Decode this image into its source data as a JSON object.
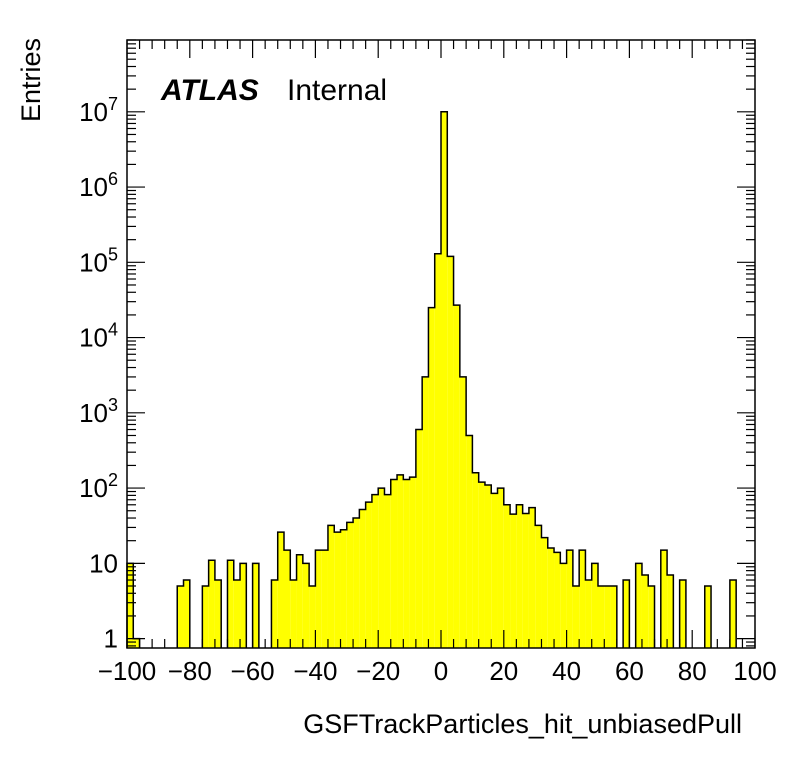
{
  "chart_data": {
    "type": "bar",
    "style": "histogram",
    "xlabel": "GSFTrackParticles_hit_unbiasedPull",
    "ylabel": "Entries",
    "xlim": [
      -100,
      100
    ],
    "ylim": [
      0.75,
      90000000
    ],
    "yscale": "log",
    "bin_width": 2,
    "x_ticks": [
      "−100",
      "−80",
      "−60",
      "−40",
      "−20",
      "0",
      "20",
      "40",
      "60",
      "80",
      "100"
    ],
    "y_ticks": [
      {
        "value": 1,
        "base": "1",
        "exp": ""
      },
      {
        "value": 10,
        "base": "10",
        "exp": ""
      },
      {
        "value": 100,
        "base": "10",
        "exp": "2"
      },
      {
        "value": 1000,
        "base": "10",
        "exp": "3"
      },
      {
        "value": 10000,
        "base": "10",
        "exp": "4"
      },
      {
        "value": 100000,
        "base": "10",
        "exp": "5"
      },
      {
        "value": 1000000,
        "base": "10",
        "exp": "6"
      },
      {
        "value": 10000000,
        "base": "10",
        "exp": "7"
      }
    ],
    "annotation": {
      "bold": "ATLAS",
      "text": "Internal"
    },
    "fill_color": "#ffff00",
    "line_color": "#000000",
    "bins": [
      {
        "lo": -100,
        "hi": -98,
        "v": 10
      },
      {
        "lo": -98,
        "hi": -96,
        "v": 1
      },
      {
        "lo": -84,
        "hi": -82,
        "v": 5
      },
      {
        "lo": -82,
        "hi": -80,
        "v": 6
      },
      {
        "lo": -76,
        "hi": -74,
        "v": 5
      },
      {
        "lo": -74,
        "hi": -72,
        "v": 11
      },
      {
        "lo": -72,
        "hi": -70,
        "v": 6
      },
      {
        "lo": -68,
        "hi": -66,
        "v": 11
      },
      {
        "lo": -66,
        "hi": -64,
        "v": 6
      },
      {
        "lo": -64,
        "hi": -62,
        "v": 10
      },
      {
        "lo": -60,
        "hi": -58,
        "v": 10
      },
      {
        "lo": -54,
        "hi": -52,
        "v": 6
      },
      {
        "lo": -52,
        "hi": -50,
        "v": 26
      },
      {
        "lo": -50,
        "hi": -48,
        "v": 15
      },
      {
        "lo": -48,
        "hi": -46,
        "v": 6
      },
      {
        "lo": -46,
        "hi": -44,
        "v": 13
      },
      {
        "lo": -44,
        "hi": -42,
        "v": 10
      },
      {
        "lo": -42,
        "hi": -40,
        "v": 5
      },
      {
        "lo": -40,
        "hi": -38,
        "v": 15
      },
      {
        "lo": -38,
        "hi": -36,
        "v": 15
      },
      {
        "lo": -36,
        "hi": -34,
        "v": 32
      },
      {
        "lo": -34,
        "hi": -32,
        "v": 26
      },
      {
        "lo": -32,
        "hi": -30,
        "v": 28
      },
      {
        "lo": -30,
        "hi": -28,
        "v": 35
      },
      {
        "lo": -28,
        "hi": -26,
        "v": 40
      },
      {
        "lo": -26,
        "hi": -24,
        "v": 52
      },
      {
        "lo": -24,
        "hi": -22,
        "v": 65
      },
      {
        "lo": -22,
        "hi": -20,
        "v": 82
      },
      {
        "lo": -20,
        "hi": -18,
        "v": 100
      },
      {
        "lo": -18,
        "hi": -16,
        "v": 82
      },
      {
        "lo": -16,
        "hi": -14,
        "v": 130
      },
      {
        "lo": -14,
        "hi": -12,
        "v": 150
      },
      {
        "lo": -12,
        "hi": -10,
        "v": 130
      },
      {
        "lo": -10,
        "hi": -8,
        "v": 140
      },
      {
        "lo": -8,
        "hi": -6,
        "v": 600
      },
      {
        "lo": -6,
        "hi": -4,
        "v": 3000
      },
      {
        "lo": -4,
        "hi": -2,
        "v": 25000
      },
      {
        "lo": -2,
        "hi": 0,
        "v": 130000
      },
      {
        "lo": 0,
        "hi": 2,
        "v": 10000000
      },
      {
        "lo": 2,
        "hi": 4,
        "v": 120000
      },
      {
        "lo": 4,
        "hi": 6,
        "v": 27000
      },
      {
        "lo": 6,
        "hi": 8,
        "v": 3000
      },
      {
        "lo": 8,
        "hi": 10,
        "v": 500
      },
      {
        "lo": 10,
        "hi": 12,
        "v": 160
      },
      {
        "lo": 12,
        "hi": 14,
        "v": 120
      },
      {
        "lo": 14,
        "hi": 16,
        "v": 110
      },
      {
        "lo": 16,
        "hi": 18,
        "v": 85
      },
      {
        "lo": 18,
        "hi": 20,
        "v": 100
      },
      {
        "lo": 20,
        "hi": 22,
        "v": 60
      },
      {
        "lo": 22,
        "hi": 24,
        "v": 45
      },
      {
        "lo": 24,
        "hi": 26,
        "v": 60
      },
      {
        "lo": 26,
        "hi": 28,
        "v": 46
      },
      {
        "lo": 28,
        "hi": 30,
        "v": 55
      },
      {
        "lo": 30,
        "hi": 32,
        "v": 32
      },
      {
        "lo": 32,
        "hi": 34,
        "v": 22
      },
      {
        "lo": 34,
        "hi": 36,
        "v": 16
      },
      {
        "lo": 36,
        "hi": 38,
        "v": 14
      },
      {
        "lo": 38,
        "hi": 40,
        "v": 10
      },
      {
        "lo": 40,
        "hi": 42,
        "v": 15
      },
      {
        "lo": 42,
        "hi": 44,
        "v": 5
      },
      {
        "lo": 44,
        "hi": 46,
        "v": 15
      },
      {
        "lo": 46,
        "hi": 48,
        "v": 6
      },
      {
        "lo": 48,
        "hi": 50,
        "v": 10
      },
      {
        "lo": 50,
        "hi": 52,
        "v": 5
      },
      {
        "lo": 52,
        "hi": 54,
        "v": 5
      },
      {
        "lo": 54,
        "hi": 56,
        "v": 5
      },
      {
        "lo": 58,
        "hi": 60,
        "v": 6
      },
      {
        "lo": 62,
        "hi": 64,
        "v": 10
      },
      {
        "lo": 64,
        "hi": 66,
        "v": 7
      },
      {
        "lo": 66,
        "hi": 68,
        "v": 5
      },
      {
        "lo": 70,
        "hi": 72,
        "v": 15
      },
      {
        "lo": 72,
        "hi": 74,
        "v": 7
      },
      {
        "lo": 76,
        "hi": 78,
        "v": 6
      },
      {
        "lo": 84,
        "hi": 86,
        "v": 5
      },
      {
        "lo": 92,
        "hi": 94,
        "v": 6
      }
    ]
  }
}
